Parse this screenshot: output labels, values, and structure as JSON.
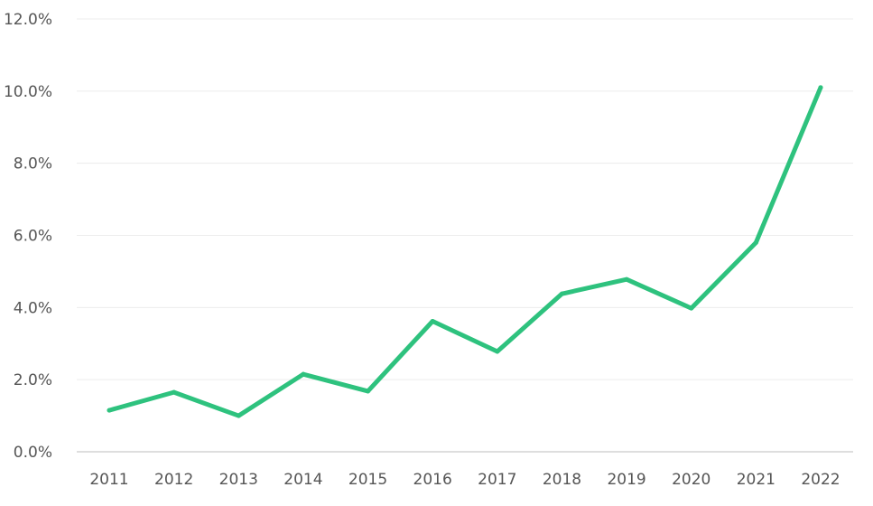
{
  "chart_data": {
    "type": "line",
    "title": "",
    "xlabel": "",
    "ylabel": "",
    "x": [
      "2011",
      "2012",
      "2013",
      "2014",
      "2015",
      "2016",
      "2017",
      "2018",
      "2019",
      "2020",
      "2021",
      "2022"
    ],
    "series": [
      {
        "values": [
          1.15,
          1.65,
          1.0,
          2.15,
          1.68,
          3.62,
          2.78,
          4.38,
          4.78,
          3.98,
          5.8,
          10.1
        ],
        "color": "#2ec27e"
      }
    ],
    "ylim": [
      0,
      12
    ],
    "y_ticks": [
      0,
      2,
      4,
      6,
      8,
      10,
      12
    ],
    "y_tick_labels": [
      "0.0%",
      "2.0%",
      "4.0%",
      "6.0%",
      "8.0%",
      "10.0%",
      "12.0%"
    ],
    "grid": true,
    "legend": "none"
  }
}
